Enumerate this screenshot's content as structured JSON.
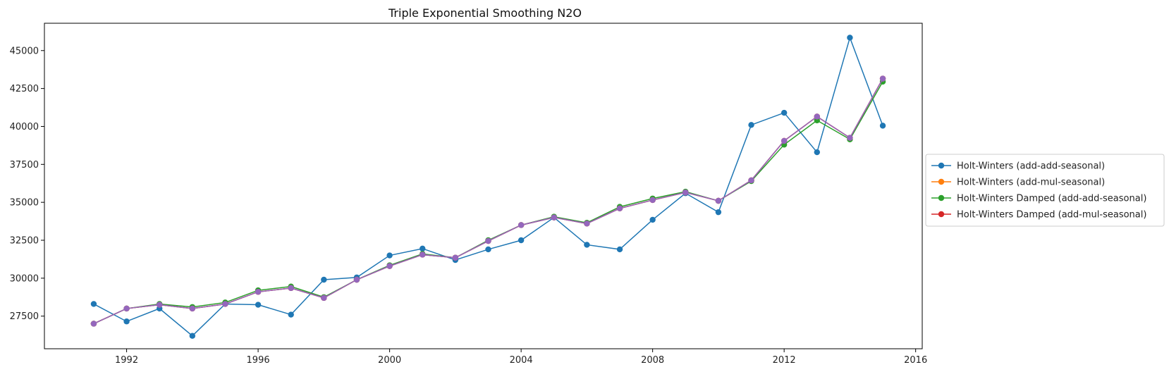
{
  "chart_data": {
    "type": "line",
    "title": "Triple Exponential Smoothing N2O",
    "xlabel": "",
    "ylabel": "",
    "xlim": [
      1989.5,
      2016.2
    ],
    "ylim": [
      25350,
      46800
    ],
    "xticks": [
      1992,
      1996,
      2000,
      2004,
      2008,
      2012,
      2016
    ],
    "yticks": [
      27500,
      30000,
      32500,
      35000,
      37500,
      40000,
      42500,
      45000
    ],
    "grid": false,
    "legend_position": "right",
    "x": [
      1991,
      1992,
      1993,
      1994,
      1995,
      1996,
      1997,
      1998,
      1999,
      2000,
      2001,
      2002,
      2003,
      2004,
      2005,
      2006,
      2007,
      2008,
      2009,
      2010,
      2011,
      2012,
      2013,
      2014,
      2015
    ],
    "series": [
      {
        "name": "Holt-Winters (add-add-seasonal)",
        "color": "#1f77b4",
        "values": [
          28300,
          27150,
          28000,
          26200,
          28300,
          28250,
          27600,
          29900,
          30050,
          31500,
          31950,
          31200,
          31900,
          32500,
          34000,
          32200,
          31900,
          33850,
          35600,
          34350,
          40100,
          40900,
          38300,
          45850,
          40050
        ]
      },
      {
        "name": "Holt-Winters (add-mul-seasonal)",
        "color": "#ff7f0e",
        "values": [
          27000,
          28000,
          28250,
          28000,
          28300,
          29100,
          29350,
          28700,
          29900,
          30800,
          31550,
          31350,
          32450,
          33500,
          34000,
          33600,
          34600,
          35150,
          35650,
          35100,
          36450,
          39050,
          40650,
          39250,
          43150
        ]
      },
      {
        "name": "Holt-Winters Damped (add-add-seasonal)",
        "color": "#2ca02c",
        "values": [
          27000,
          28000,
          28300,
          28100,
          28400,
          29200,
          29450,
          28750,
          29900,
          30850,
          31600,
          31350,
          32500,
          33500,
          34050,
          33650,
          34700,
          35250,
          35700,
          35100,
          36400,
          38800,
          40400,
          39150,
          42950
        ]
      },
      {
        "name": "Holt-Winters Damped (add-mul-seasonal)",
        "color": "#d62728",
        "values": [
          27000,
          28000,
          28250,
          28000,
          28300,
          29100,
          29350,
          28700,
          29900,
          30800,
          31550,
          31350,
          32450,
          33500,
          34000,
          33600,
          34600,
          35150,
          35650,
          35100,
          36450,
          39050,
          40650,
          39250,
          43150
        ]
      },
      {
        "name": "",
        "color": "#9467bd",
        "values": [
          27000,
          28000,
          28250,
          28000,
          28300,
          29100,
          29350,
          28700,
          29900,
          30800,
          31550,
          31350,
          32450,
          33500,
          34000,
          33600,
          34600,
          35150,
          35650,
          35100,
          36450,
          39050,
          40650,
          39250,
          43150
        ]
      }
    ],
    "legend_entries": [
      {
        "label": "Holt-Winters (add-add-seasonal)",
        "color": "#1f77b4"
      },
      {
        "label": "Holt-Winters (add-mul-seasonal)",
        "color": "#ff7f0e"
      },
      {
        "label": "Holt-Winters Damped (add-add-seasonal)",
        "color": "#2ca02c"
      },
      {
        "label": "Holt-Winters Damped (add-mul-seasonal)",
        "color": "#d62728"
      }
    ]
  }
}
